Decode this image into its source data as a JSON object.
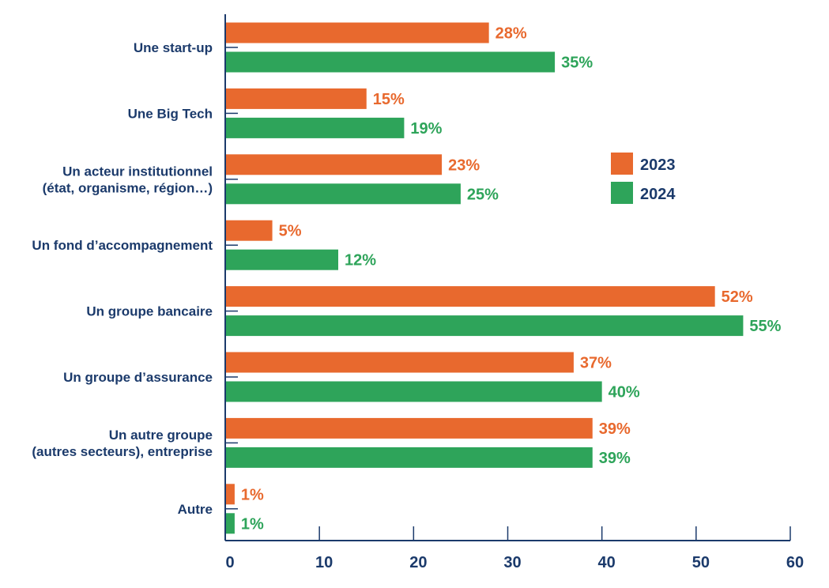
{
  "chart_data": {
    "type": "bar",
    "orientation": "horizontal",
    "categories": [
      [
        "Une start-up"
      ],
      [
        "Une Big Tech"
      ],
      [
        "Un acteur institutionnel",
        "(état, organisme, région…)"
      ],
      [
        "Un fond d’accompagnement"
      ],
      [
        "Un groupe bancaire"
      ],
      [
        "Un groupe d’assurance"
      ],
      [
        "Un autre groupe",
        "(autres secteurs), entreprise"
      ],
      [
        "Autre"
      ]
    ],
    "series": [
      {
        "name": "2023",
        "color": "#e8692e",
        "values": [
          28,
          15,
          23,
          5,
          52,
          37,
          39,
          1
        ]
      },
      {
        "name": "2024",
        "color": "#2ea45a",
        "values": [
          35,
          19,
          25,
          12,
          55,
          40,
          39,
          1
        ]
      }
    ],
    "value_suffix": "%",
    "xlim": [
      0,
      60
    ],
    "xticks": [
      0,
      10,
      20,
      30,
      40,
      50,
      60
    ],
    "legend_position": "right",
    "grid": false
  },
  "colors": {
    "axis": "#1b3a6b",
    "text": "#1b3a6b"
  }
}
